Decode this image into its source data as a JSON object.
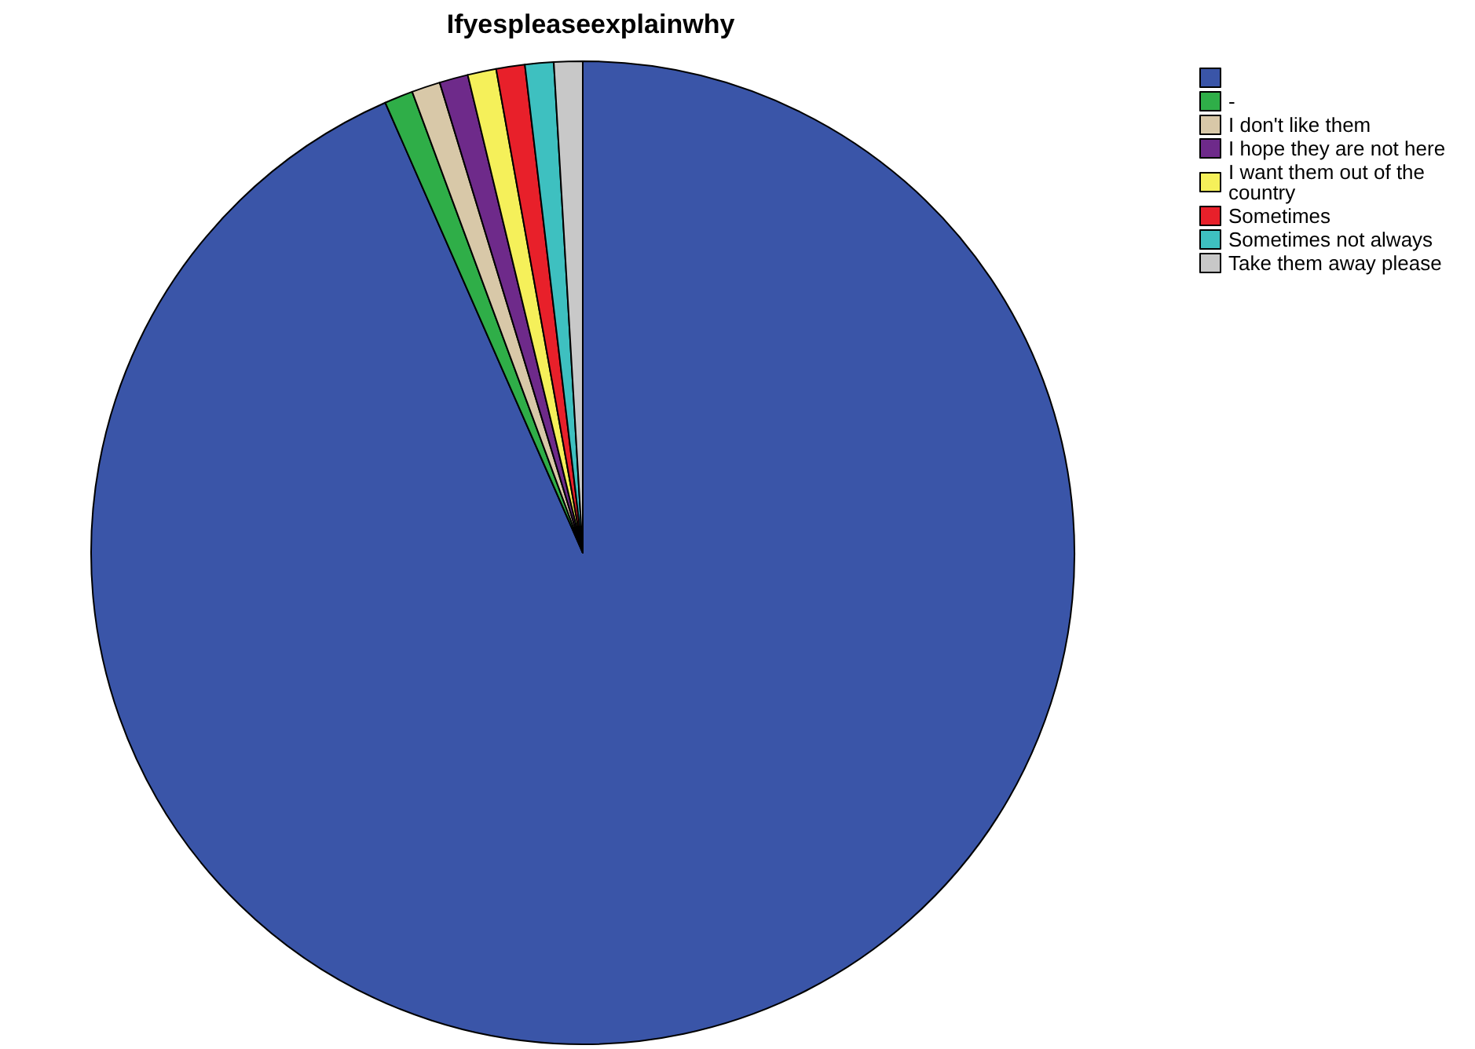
{
  "chart_data": {
    "type": "pie",
    "title": "Ifyespleaseexplainwhy",
    "categories": [
      null,
      "-",
      "I don't like them",
      "I hope they are not here",
      "I want them out of the country",
      "Sometimes",
      "Sometimes not always",
      "Take them away please"
    ],
    "values": [
      93.42,
      0.94,
      0.94,
      0.94,
      0.94,
      0.94,
      0.94,
      0.94
    ],
    "colors": [
      "#3a55a8",
      "#2fae48",
      "#d8c8a8",
      "#6e2a8a",
      "#f5f05a",
      "#e8202a",
      "#3ec0c0",
      "#c8c8c8"
    ],
    "legend": "top right"
  }
}
